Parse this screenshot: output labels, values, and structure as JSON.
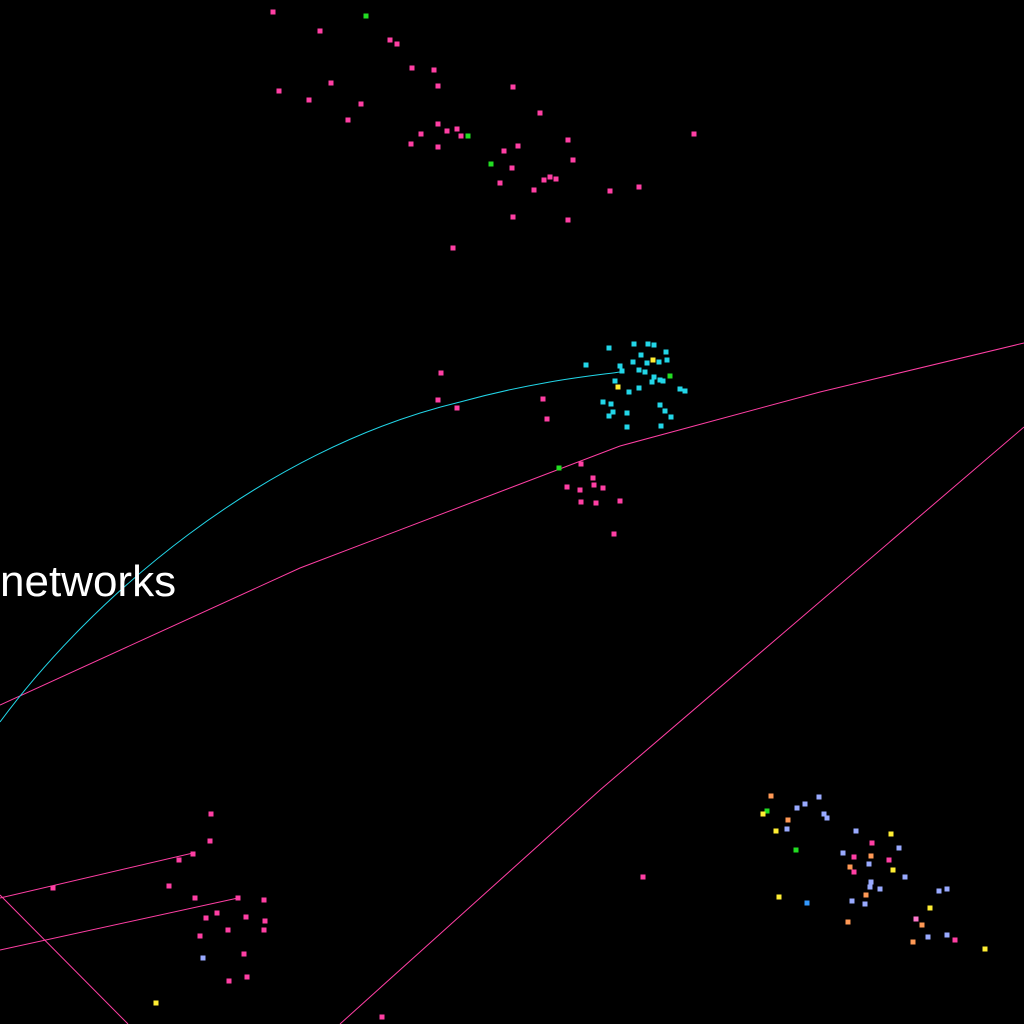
{
  "colors": {
    "background": "#000000",
    "magenta": "#ff3fa4",
    "cyan": "#22d6e8",
    "green": "#22dd22",
    "yellow": "#ffee33",
    "lavender": "#99aaff",
    "orange": "#ff9955",
    "blue": "#3399ff",
    "pink": "#ff77cc",
    "label": "#ffffff"
  },
  "labels": {
    "cluster_label": "networks"
  }
}
